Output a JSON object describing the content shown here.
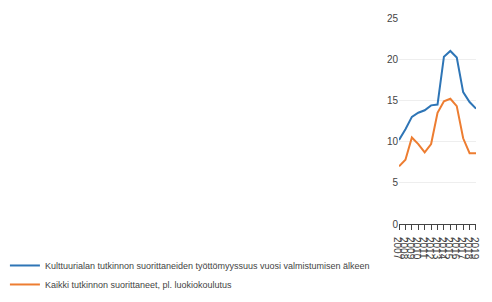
{
  "chart_data": {
    "type": "line",
    "x": [
      2007,
      2008,
      2009,
      2010,
      2011,
      2012,
      2013,
      2014,
      2015,
      2016,
      2017,
      2018,
      2019
    ],
    "series": [
      {
        "name": "Kulttuurialan tutkinnon suorittaneiden työttömyyssuus vuosi valmistumisen älkeen",
        "color": "#2e75b6",
        "values": [
          10.2,
          11.5,
          13.0,
          13.5,
          13.8,
          14.4,
          14.5,
          20.3,
          21.0,
          20.2,
          16.0,
          14.8,
          14.0
        ]
      },
      {
        "name": "Kaikki tutkinnon suorittaneet, pl. luokiokoulutus",
        "color": "#ed7d31",
        "values": [
          7.0,
          7.8,
          10.5,
          9.7,
          8.7,
          9.7,
          13.5,
          14.9,
          15.2,
          14.3,
          10.4,
          8.6,
          8.6
        ]
      }
    ],
    "xlim": [
      2007,
      2019
    ],
    "xticks": [
      2007,
      2008,
      2009,
      2010,
      2011,
      2012,
      2013,
      2014,
      2015,
      2016,
      2017,
      2018,
      2019
    ],
    "ylim": [
      0,
      25
    ],
    "yticks": [
      0,
      5,
      10,
      15,
      20,
      25
    ],
    "grid": true,
    "legend": "bottom"
  }
}
